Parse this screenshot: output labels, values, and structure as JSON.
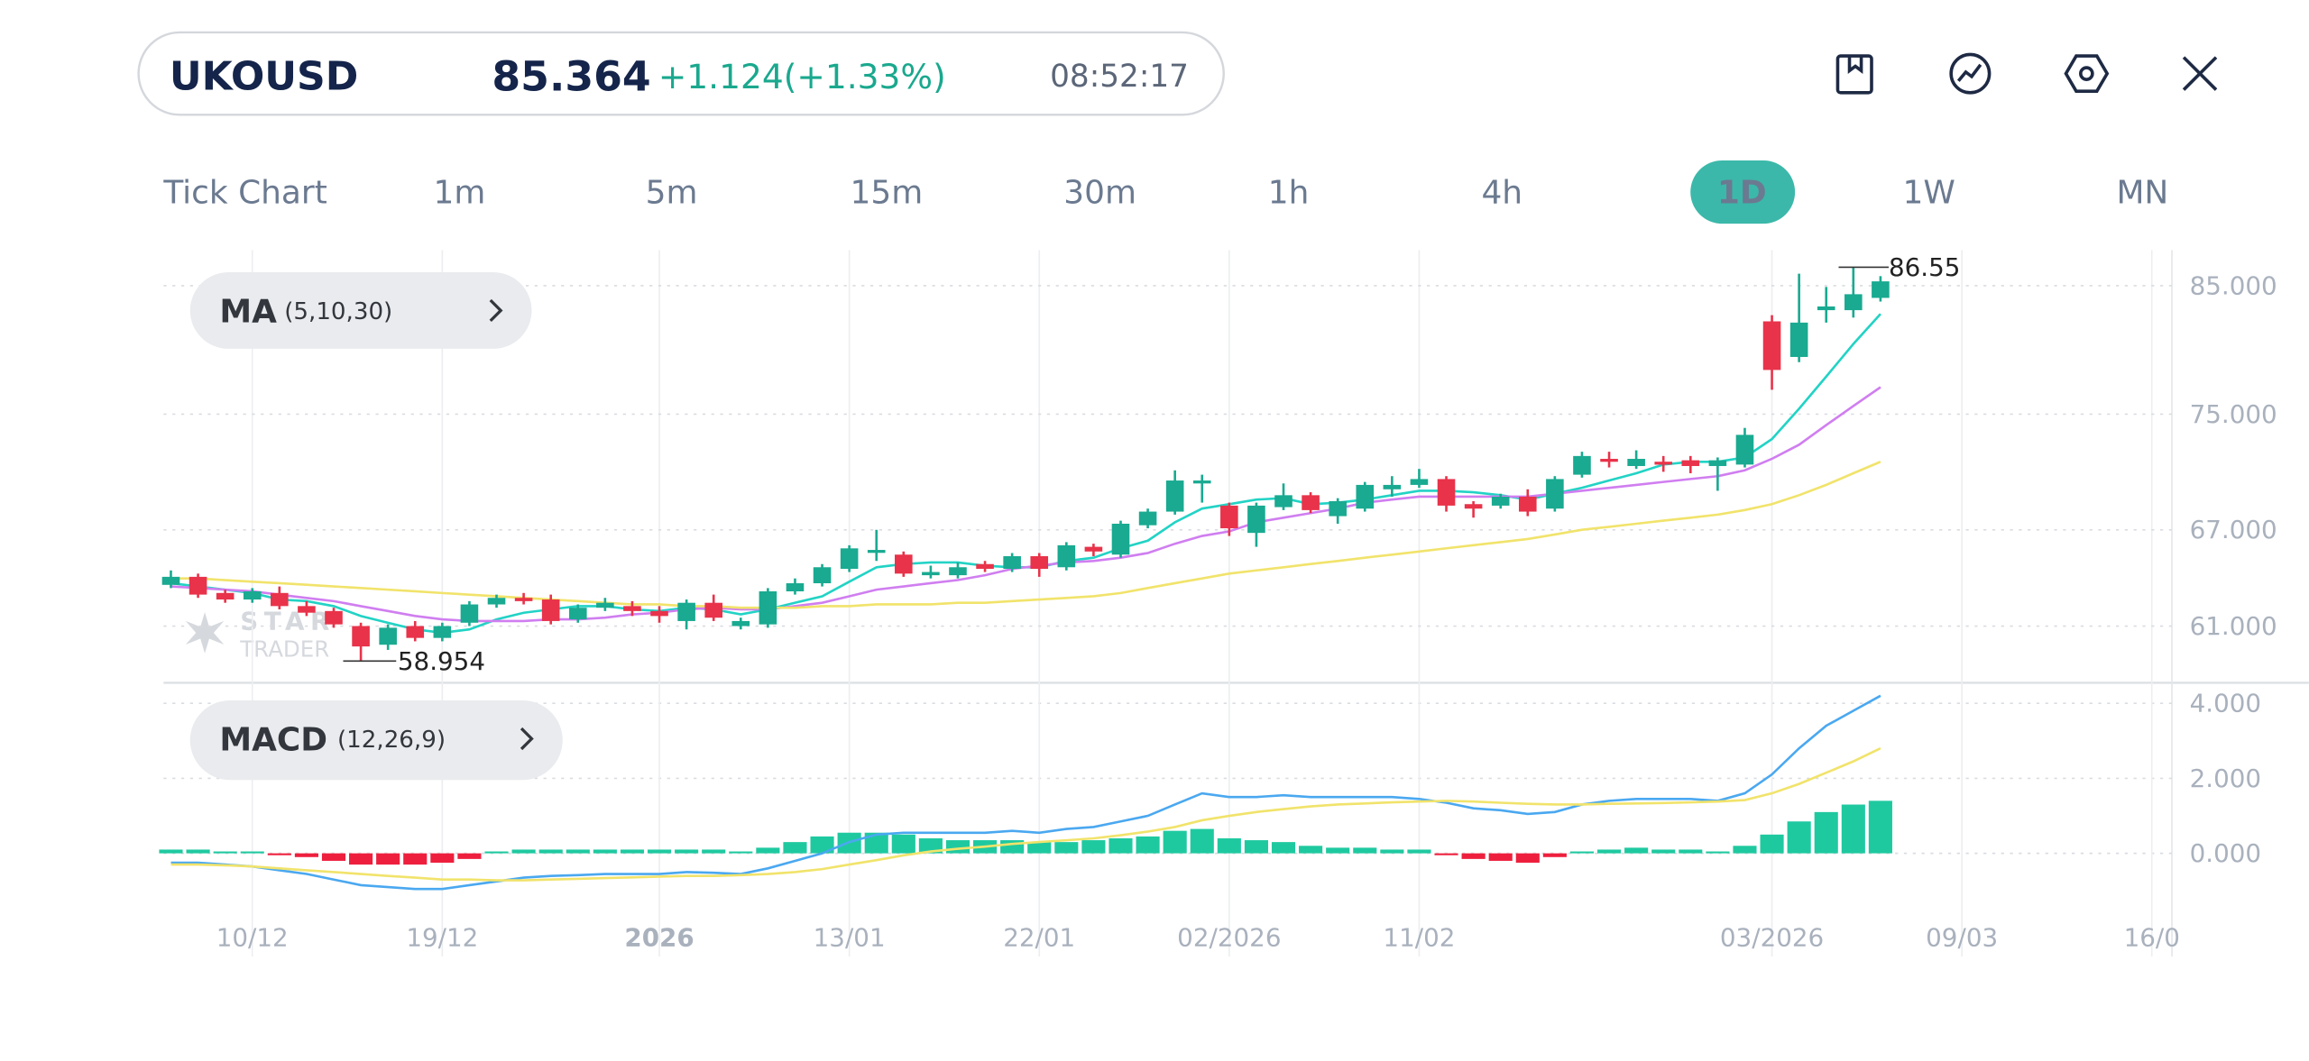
{
  "header": {
    "symbol": "UKOUSD",
    "price": "85.364",
    "change": "+1.124(+1.33%)",
    "time": "08:52:17"
  },
  "timeframes": {
    "items": [
      "Tick Chart",
      "1m",
      "5m",
      "15m",
      "30m",
      "1h",
      "4h",
      "1D",
      "1W",
      "MN"
    ],
    "active_index": 7
  },
  "chart_data": [
    {
      "type": "candlestick",
      "indicator": "MA",
      "indicator_params": "(5,10,30)",
      "watermark": [
        "STAR",
        "TRADER"
      ],
      "up_color": "#19aa91",
      "down_color": "#e8334a",
      "log_scale": true,
      "grid": true,
      "xlim": [
        -0.27,
        73.74
      ],
      "ylim": [
        57.8,
        88.0
      ],
      "yticks": [
        {
          "value": 85,
          "label": "85.000"
        },
        {
          "value": 75,
          "label": "75.000"
        },
        {
          "value": 67,
          "label": "67.000"
        },
        {
          "value": 61,
          "label": "61.000"
        }
      ],
      "high_marker": 86.55,
      "low_marker": 58.954,
      "open": [
        63.5,
        64.0,
        63.0,
        62.6,
        63.0,
        62.2,
        61.9,
        61.0,
        59.9,
        61.0,
        60.3,
        61.2,
        62.3,
        62.7,
        62.6,
        61.4,
        62.1,
        62.2,
        61.9,
        61.3,
        62.4,
        61.0,
        61.1,
        63.1,
        63.6,
        64.5,
        65.6,
        65.4,
        64.1,
        64.1,
        64.8,
        64.5,
        65.3,
        64.6,
        65.9,
        65.4,
        67.3,
        68.2,
        70.1,
        68.6,
        66.8,
        68.5,
        69.3,
        67.9,
        68.4,
        69.7,
        70.0,
        70.4,
        68.7,
        68.6,
        69.2,
        68.4,
        70.7,
        71.8,
        71.3,
        71.6,
        71.7,
        71.3,
        71.4,
        82.1,
        79.3,
        83.0,
        83.0,
        84.0
      ],
      "high": [
        64.4,
        64.2,
        63.2,
        63.3,
        63.4,
        62.5,
        62.1,
        61.2,
        61.1,
        61.3,
        61.2,
        62.5,
        62.9,
        63.0,
        62.9,
        62.3,
        62.7,
        62.5,
        62.2,
        62.6,
        62.9,
        61.5,
        63.3,
        63.9,
        64.8,
        66.0,
        67.0,
        65.6,
        64.7,
        64.9,
        65.0,
        65.5,
        65.5,
        66.2,
        66.1,
        67.6,
        68.4,
        71.0,
        70.7,
        68.8,
        68.8,
        70.1,
        69.5,
        69.1,
        70.2,
        70.6,
        71.1,
        70.6,
        68.9,
        69.4,
        69.7,
        70.6,
        72.3,
        72.3,
        72.4,
        72.0,
        72.0,
        71.9,
        74.0,
        82.6,
        86.0,
        84.9,
        86.55,
        85.8
      ],
      "low": [
        63.3,
        62.7,
        62.4,
        62.4,
        62.0,
        61.6,
        60.9,
        58.954,
        59.6,
        60.1,
        60.1,
        61.0,
        62.1,
        62.3,
        61.1,
        61.2,
        61.9,
        61.6,
        61.2,
        60.8,
        61.3,
        60.8,
        60.9,
        62.9,
        63.4,
        64.3,
        65.0,
        64.0,
        63.9,
        63.9,
        64.3,
        64.3,
        64.0,
        64.4,
        65.3,
        65.2,
        67.1,
        68.0,
        68.8,
        66.6,
        65.9,
        68.3,
        68.1,
        67.4,
        68.2,
        69.2,
        69.8,
        68.2,
        67.8,
        68.4,
        67.9,
        68.2,
        70.5,
        71.2,
        71.1,
        70.9,
        70.8,
        69.6,
        71.2,
        76.8,
        78.9,
        82.0,
        82.4,
        83.7
      ],
      "close": [
        64.0,
        62.9,
        62.6,
        63.1,
        62.2,
        61.8,
        61.1,
        59.8,
        60.9,
        60.3,
        61.0,
        62.3,
        62.7,
        62.5,
        61.3,
        62.1,
        62.4,
        61.9,
        61.6,
        62.4,
        61.5,
        61.3,
        63.1,
        63.6,
        64.6,
        65.8,
        65.7,
        64.2,
        64.3,
        64.6,
        64.5,
        65.3,
        64.5,
        66.0,
        65.6,
        67.4,
        68.2,
        70.3,
        70.3,
        67.1,
        68.6,
        69.3,
        68.3,
        68.9,
        70.0,
        70.0,
        70.4,
        68.6,
        68.4,
        69.2,
        68.2,
        70.4,
        72.0,
        71.6,
        71.8,
        71.4,
        71.3,
        71.7,
        73.5,
        78.3,
        82.0,
        83.3,
        84.3,
        85.364
      ],
      "series": [
        {
          "color": "#22d3c5",
          "values": [
            63.6,
            63.4,
            63.2,
            63.0,
            62.6,
            62.5,
            62.2,
            61.6,
            61.2,
            60.8,
            60.6,
            60.8,
            61.4,
            61.8,
            62.0,
            62.2,
            62.2,
            62.0,
            61.9,
            62.1,
            62.0,
            61.7,
            62.0,
            62.4,
            62.8,
            63.7,
            64.6,
            64.8,
            64.9,
            64.9,
            64.7,
            64.6,
            64.6,
            65.0,
            65.2,
            65.8,
            66.3,
            67.5,
            68.4,
            68.7,
            69.0,
            69.1,
            68.7,
            68.8,
            69.0,
            69.3,
            69.6,
            69.6,
            69.5,
            69.3,
            69.0,
            69.4,
            69.8,
            70.3,
            70.8,
            71.4,
            71.6,
            71.6,
            71.9,
            73.2,
            75.4,
            77.8,
            80.3,
            82.7
          ]
        },
        {
          "color": "#d07ef0",
          "values": [
            63.4,
            63.3,
            63.2,
            63.1,
            62.9,
            62.7,
            62.5,
            62.2,
            61.9,
            61.6,
            61.4,
            61.3,
            61.3,
            61.3,
            61.4,
            61.4,
            61.5,
            61.7,
            61.8,
            62.0,
            62.1,
            62.0,
            62.0,
            62.2,
            62.4,
            62.8,
            63.2,
            63.4,
            63.6,
            63.8,
            64.1,
            64.5,
            64.7,
            64.9,
            65.0,
            65.2,
            65.5,
            66.1,
            66.6,
            66.9,
            67.5,
            67.8,
            68.1,
            68.4,
            68.8,
            69.0,
            69.2,
            69.2,
            69.2,
            69.2,
            69.2,
            69.4,
            69.6,
            69.8,
            70.0,
            70.2,
            70.4,
            70.6,
            71.0,
            71.8,
            72.8,
            74.2,
            75.6,
            77.0
          ]
        },
        {
          "color": "#f1e36b",
          "values": [
            63.9,
            63.9,
            63.8,
            63.7,
            63.6,
            63.5,
            63.4,
            63.3,
            63.2,
            63.1,
            63.0,
            62.9,
            62.8,
            62.7,
            62.6,
            62.5,
            62.4,
            62.3,
            62.3,
            62.2,
            62.2,
            62.1,
            62.1,
            62.1,
            62.2,
            62.2,
            62.3,
            62.3,
            62.3,
            62.4,
            62.4,
            62.5,
            62.6,
            62.7,
            62.8,
            63.0,
            63.3,
            63.6,
            63.9,
            64.2,
            64.4,
            64.6,
            64.8,
            65.0,
            65.2,
            65.4,
            65.6,
            65.8,
            66.0,
            66.2,
            66.4,
            66.7,
            67.0,
            67.2,
            67.4,
            67.6,
            67.8,
            68.0,
            68.3,
            68.7,
            69.3,
            70.0,
            70.8,
            71.6
          ]
        }
      ]
    },
    {
      "type": "macd",
      "indicator": "MACD",
      "indicator_params": "(12,26,9)",
      "grid": true,
      "xlim": [
        -0.27,
        73.74
      ],
      "ylim": [
        -1.26,
        4.31
      ],
      "yticks": [
        {
          "value": 4,
          "label": "4.000"
        },
        {
          "value": 2,
          "label": "2.000"
        },
        {
          "value": 0,
          "label": "0.000"
        }
      ],
      "xticks": [
        {
          "value": 3,
          "label": "10/12"
        },
        {
          "value": 10,
          "label": "19/12"
        },
        {
          "value": 18,
          "label": "2026"
        },
        {
          "value": 25,
          "label": "13/01"
        },
        {
          "value": 32,
          "label": "22/01"
        },
        {
          "value": 39,
          "label": "02/2026"
        },
        {
          "value": 46,
          "label": "11/02"
        },
        {
          "value": 59,
          "label": "03/2026"
        },
        {
          "value": 66,
          "label": "09/03"
        },
        {
          "value": 73,
          "label": "16/0"
        }
      ],
      "up_color": "#1fc9a0",
      "down_color": "#ee1f3d",
      "histogram": [
        0.1,
        0.1,
        0.05,
        0.05,
        -0.05,
        -0.1,
        -0.2,
        -0.3,
        -0.3,
        -0.3,
        -0.25,
        -0.15,
        0.05,
        0.1,
        0.1,
        0.1,
        0.1,
        0.1,
        0.1,
        0.1,
        0.1,
        0.05,
        0.15,
        0.3,
        0.45,
        0.55,
        0.55,
        0.5,
        0.4,
        0.35,
        0.35,
        0.35,
        0.3,
        0.3,
        0.35,
        0.4,
        0.45,
        0.6,
        0.65,
        0.4,
        0.35,
        0.3,
        0.2,
        0.15,
        0.15,
        0.1,
        0.1,
        -0.05,
        -0.15,
        -0.2,
        -0.25,
        -0.1,
        0.05,
        0.1,
        0.15,
        0.1,
        0.1,
        0.05,
        0.2,
        0.5,
        0.85,
        1.1,
        1.3,
        1.4
      ],
      "series": [
        {
          "color": "#4aa8f0",
          "values": [
            -0.25,
            -0.25,
            -0.3,
            -0.35,
            -0.45,
            -0.55,
            -0.7,
            -0.85,
            -0.9,
            -0.95,
            -0.95,
            -0.85,
            -0.75,
            -0.65,
            -0.6,
            -0.58,
            -0.55,
            -0.55,
            -0.55,
            -0.5,
            -0.52,
            -0.55,
            -0.4,
            -0.2,
            0.0,
            0.3,
            0.5,
            0.55,
            0.55,
            0.55,
            0.55,
            0.6,
            0.55,
            0.65,
            0.7,
            0.85,
            1.0,
            1.3,
            1.6,
            1.5,
            1.5,
            1.55,
            1.5,
            1.5,
            1.5,
            1.5,
            1.45,
            1.35,
            1.2,
            1.15,
            1.05,
            1.1,
            1.3,
            1.4,
            1.45,
            1.45,
            1.45,
            1.4,
            1.6,
            2.1,
            2.8,
            3.4,
            3.8,
            4.2
          ]
        },
        {
          "color": "#f1e36b",
          "values": [
            -0.3,
            -0.3,
            -0.32,
            -0.35,
            -0.4,
            -0.45,
            -0.5,
            -0.55,
            -0.6,
            -0.65,
            -0.7,
            -0.7,
            -0.72,
            -0.72,
            -0.7,
            -0.68,
            -0.66,
            -0.64,
            -0.62,
            -0.6,
            -0.6,
            -0.58,
            -0.55,
            -0.5,
            -0.42,
            -0.3,
            -0.18,
            -0.05,
            0.05,
            0.12,
            0.18,
            0.25,
            0.3,
            0.35,
            0.4,
            0.48,
            0.58,
            0.7,
            0.88,
            1.0,
            1.1,
            1.18,
            1.25,
            1.3,
            1.33,
            1.36,
            1.38,
            1.4,
            1.38,
            1.35,
            1.32,
            1.3,
            1.3,
            1.32,
            1.33,
            1.34,
            1.36,
            1.38,
            1.42,
            1.6,
            1.85,
            2.15,
            2.45,
            2.8
          ]
        }
      ]
    }
  ]
}
